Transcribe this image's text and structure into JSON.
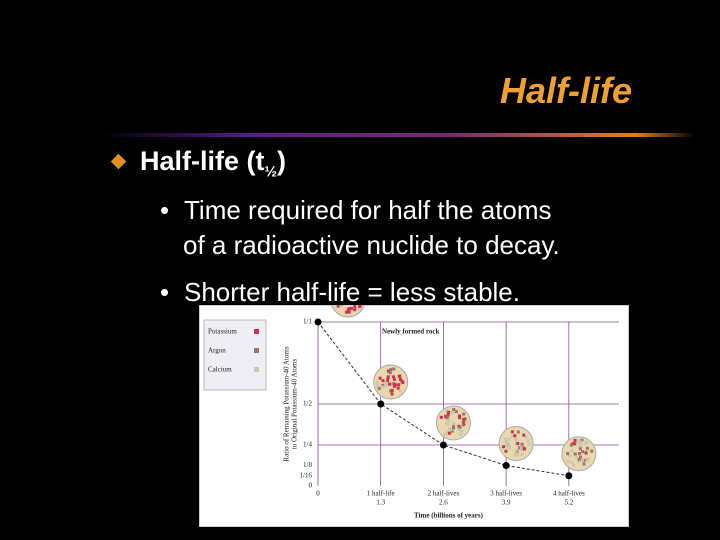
{
  "slide": {
    "title": "Half-life",
    "bullet": {
      "text": "Half-life (t",
      "subscript": "½",
      "suffix": ")"
    },
    "sub_bullets": [
      {
        "lines": [
          "Time required for half the atoms",
          "of a radioactive nuclide to decay."
        ]
      },
      {
        "lines": [
          "Shorter half-life = less stable."
        ]
      }
    ]
  },
  "chart_data": {
    "type": "line",
    "legend": [
      "Potassium",
      "Argon",
      "Calcium"
    ],
    "legend_colors": [
      "#d0304a",
      "#a07070",
      "#c8c8b0"
    ],
    "annotation": "Newly formed rock",
    "y_label": [
      "Ratio of Remaining Potassium-40 Atoms",
      "to Original Potassium-40 Atoms"
    ],
    "x_label": "Time (billions of years)",
    "x": [
      0,
      1,
      2,
      3,
      4
    ],
    "values": [
      1,
      0.5,
      0.25,
      0.125,
      0.0625
    ],
    "xlim": [
      0,
      4.8
    ],
    "ylim": [
      0,
      1
    ],
    "xticks": [
      0,
      {
        "value": 1,
        "label": "1 half-life"
      },
      {
        "value": 2,
        "label": "2 half-lives"
      },
      {
        "value": 3,
        "label": "3 half-lives"
      },
      {
        "value": 4,
        "label": "4 half-lives"
      }
    ],
    "time_billions": [
      1.3,
      2.6,
      3.9,
      5.2
    ],
    "yticks": [
      0,
      {
        "value": 0.0625,
        "label": "1/16"
      },
      {
        "value": 0.125,
        "label": "1/8"
      },
      {
        "value": 0.25,
        "label": "1/4"
      },
      {
        "value": 0.5,
        "label": "1/2"
      },
      {
        "value": 1,
        "label": "1/1"
      }
    ],
    "grid": true,
    "grid_color": "#8a4a9a",
    "color": "#000000"
  }
}
